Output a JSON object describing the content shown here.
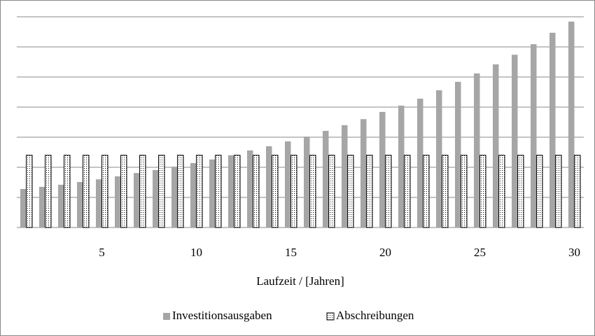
{
  "chart_data": {
    "type": "bar",
    "x_label": "Laufzeit / [Jahren]",
    "categories": [
      null,
      null,
      null,
      null,
      5,
      null,
      null,
      null,
      null,
      10,
      null,
      null,
      null,
      null,
      15,
      null,
      null,
      null,
      null,
      20,
      null,
      null,
      null,
      null,
      25,
      null,
      null,
      null,
      null,
      30
    ],
    "series": [
      {
        "name": "Investitionsausgaben",
        "color": "#a6a6a6",
        "values": [
          1.28,
          1.35,
          1.42,
          1.51,
          1.6,
          1.7,
          1.81,
          1.91,
          2.02,
          2.14,
          2.26,
          2.4,
          2.56,
          2.7,
          2.86,
          3.02,
          3.21,
          3.4,
          3.6,
          3.84,
          4.05,
          4.28,
          4.56,
          4.84,
          5.12,
          5.42,
          5.74,
          6.09,
          6.47,
          6.84
        ]
      },
      {
        "name": "Abschreibungen",
        "color": "#ffffff",
        "pattern": "dots",
        "values": [
          2.4,
          2.4,
          2.4,
          2.4,
          2.4,
          2.4,
          2.4,
          2.4,
          2.4,
          2.4,
          2.4,
          2.4,
          2.4,
          2.4,
          2.4,
          2.4,
          2.4,
          2.4,
          2.4,
          2.4,
          2.4,
          2.4,
          2.4,
          2.4,
          2.4,
          2.4,
          2.4,
          2.4,
          2.4,
          2.4
        ]
      }
    ],
    "ylim": [
      0,
      7
    ],
    "yticks": [
      0,
      1,
      2,
      3,
      4,
      5,
      6,
      7
    ],
    "grid": true,
    "legend": "bottom"
  }
}
